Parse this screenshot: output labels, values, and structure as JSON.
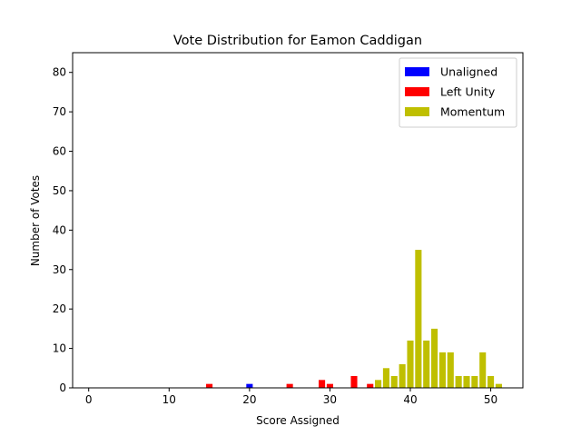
{
  "chart_data": {
    "type": "bar",
    "title": "Vote Distribution for Eamon Caddigan",
    "xlabel": "Score Assigned",
    "ylabel": "Number of Votes",
    "xlim": [
      -2,
      54
    ],
    "ylim": [
      0,
      85
    ],
    "xticks": [
      0,
      10,
      20,
      30,
      40,
      50
    ],
    "yticks": [
      0,
      10,
      20,
      30,
      40,
      50,
      60,
      70,
      80
    ],
    "grid": false,
    "legend_position": "top-right",
    "series": [
      {
        "name": "Unaligned",
        "color": "#0000ff",
        "points": [
          {
            "x": 20,
            "y": 1
          }
        ]
      },
      {
        "name": "Left Unity",
        "color": "#ff0000",
        "points": [
          {
            "x": 15,
            "y": 1
          },
          {
            "x": 25,
            "y": 1
          },
          {
            "x": 29,
            "y": 2
          },
          {
            "x": 30,
            "y": 1
          },
          {
            "x": 33,
            "y": 3
          },
          {
            "x": 35,
            "y": 1
          }
        ]
      },
      {
        "name": "Momentum",
        "color": "#bfbf00",
        "points": [
          {
            "x": 36,
            "y": 2
          },
          {
            "x": 37,
            "y": 5
          },
          {
            "x": 38,
            "y": 3
          },
          {
            "x": 39,
            "y": 6
          },
          {
            "x": 40,
            "y": 12
          },
          {
            "x": 41,
            "y": 35
          },
          {
            "x": 42,
            "y": 12
          },
          {
            "x": 43,
            "y": 15
          },
          {
            "x": 44,
            "y": 9
          },
          {
            "x": 45,
            "y": 9
          },
          {
            "x": 46,
            "y": 3
          },
          {
            "x": 47,
            "y": 3
          },
          {
            "x": 48,
            "y": 3
          },
          {
            "x": 49,
            "y": 9
          },
          {
            "x": 50,
            "y": 3
          },
          {
            "x": 51,
            "y": 1
          }
        ]
      }
    ]
  }
}
